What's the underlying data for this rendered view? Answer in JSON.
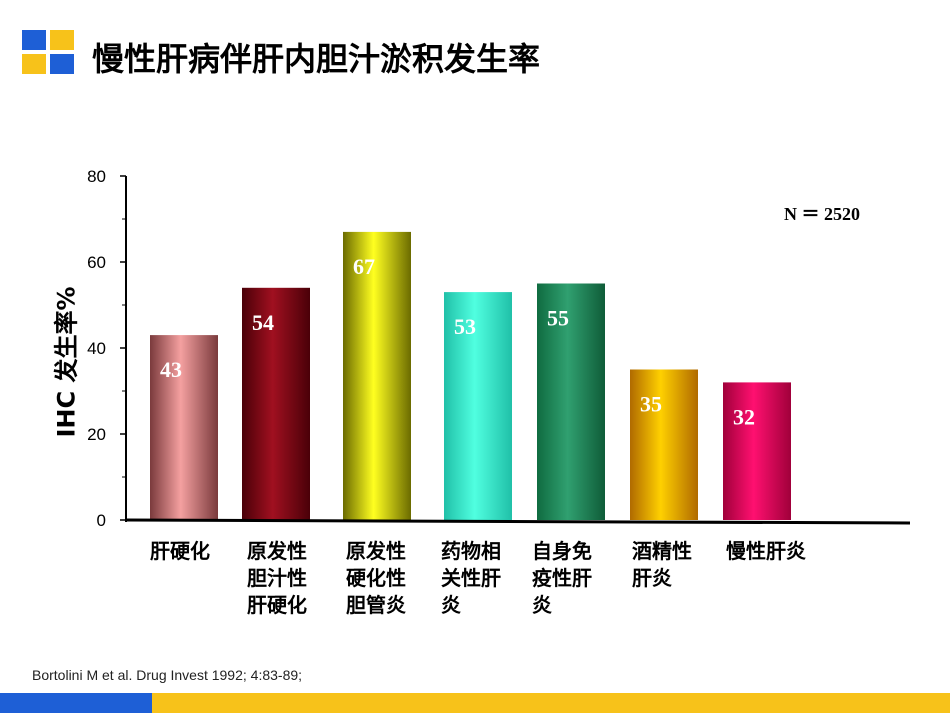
{
  "title": "慢性肝病伴肝内胆汁淤积发生率",
  "citation": "Bortolini M et al. Drug Invest 1992; 4:83-89;",
  "chart_data": {
    "type": "bar",
    "title": "",
    "ylabel": "IHC 发生率%",
    "xlabel": "",
    "ylim": [
      0,
      80
    ],
    "yticks": [
      "0",
      "20",
      "40",
      "60",
      "80"
    ],
    "categories": [
      "肝硬化",
      "原发性\n胆汁性\n肝硬化",
      "原发性\n硬化性\n胆管炎",
      "药物相\n关性肝\n炎",
      "自身免\n疫性肝\n炎",
      "酒精性\n肝炎",
      "慢性肝炎"
    ],
    "values": [
      43,
      54,
      67,
      53,
      55,
      35,
      32
    ],
    "data_labels": [
      "43",
      "54",
      "67",
      "53",
      "55",
      "35",
      "32"
    ],
    "colors": [
      [
        "#7a3a3c",
        "#f4a0a0",
        "#7a3a3c"
      ],
      [
        "#4a0008",
        "#a01020",
        "#4a0008"
      ],
      [
        "#6b6b00",
        "#ffff20",
        "#6b6b00"
      ],
      [
        "#20c0a8",
        "#50ffe0",
        "#20c0a8"
      ],
      [
        "#0f6b40",
        "#30a070",
        "#0f5c38"
      ],
      [
        "#b06a00",
        "#ffd000",
        "#b06a00"
      ],
      [
        "#a0003a",
        "#ff1070",
        "#a0003a"
      ]
    ],
    "annotation": "N ＝ 2520",
    "grid": false
  }
}
